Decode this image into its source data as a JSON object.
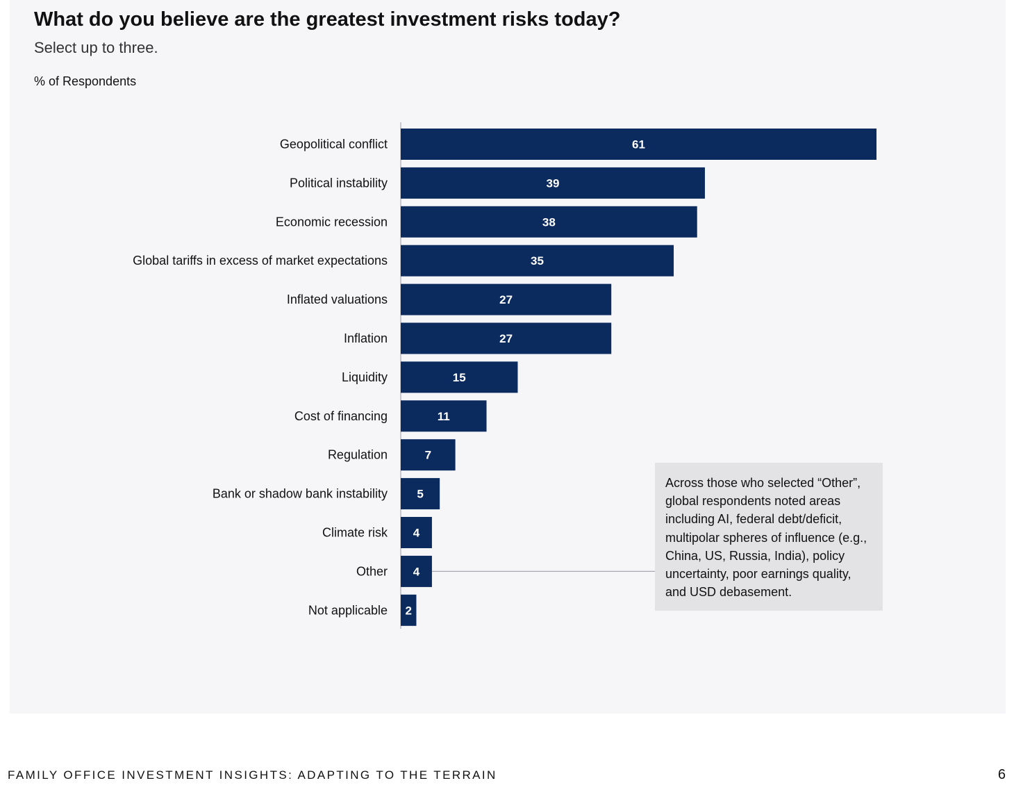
{
  "chart_data": {
    "type": "bar",
    "orientation": "horizontal",
    "title": "What do you believe are the greatest investment risks today?",
    "subtitle": "Select up to three.",
    "unit_label": "% of Respondents",
    "categories": [
      "Geopolitical conflict",
      "Political instability",
      "Economic recession",
      "Global tariffs in excess of market expectations",
      "Inflated valuations",
      "Inflation",
      "Liquidity",
      "Cost of financing",
      "Regulation",
      "Bank or shadow bank instability",
      "Climate risk",
      "Other",
      "Not applicable"
    ],
    "values": [
      61,
      39,
      38,
      35,
      27,
      27,
      15,
      11,
      7,
      5,
      4,
      4,
      2
    ],
    "xlim": [
      0,
      100
    ],
    "grid": false,
    "bar_color": "#0b2a5e",
    "annotation": {
      "target_category": "Other",
      "text": "Across those who selected “Other”, global respondents noted areas including AI, federal debt/deficit, multipolar spheres of influence (e.g., China, US, Russia, India), policy uncertainty, poor earnings quality, and USD debasement."
    }
  },
  "footer": {
    "publication": "FAMILY OFFICE INVESTMENT INSIGHTS: ADAPTING TO THE TERRAIN",
    "page_number": "6"
  }
}
